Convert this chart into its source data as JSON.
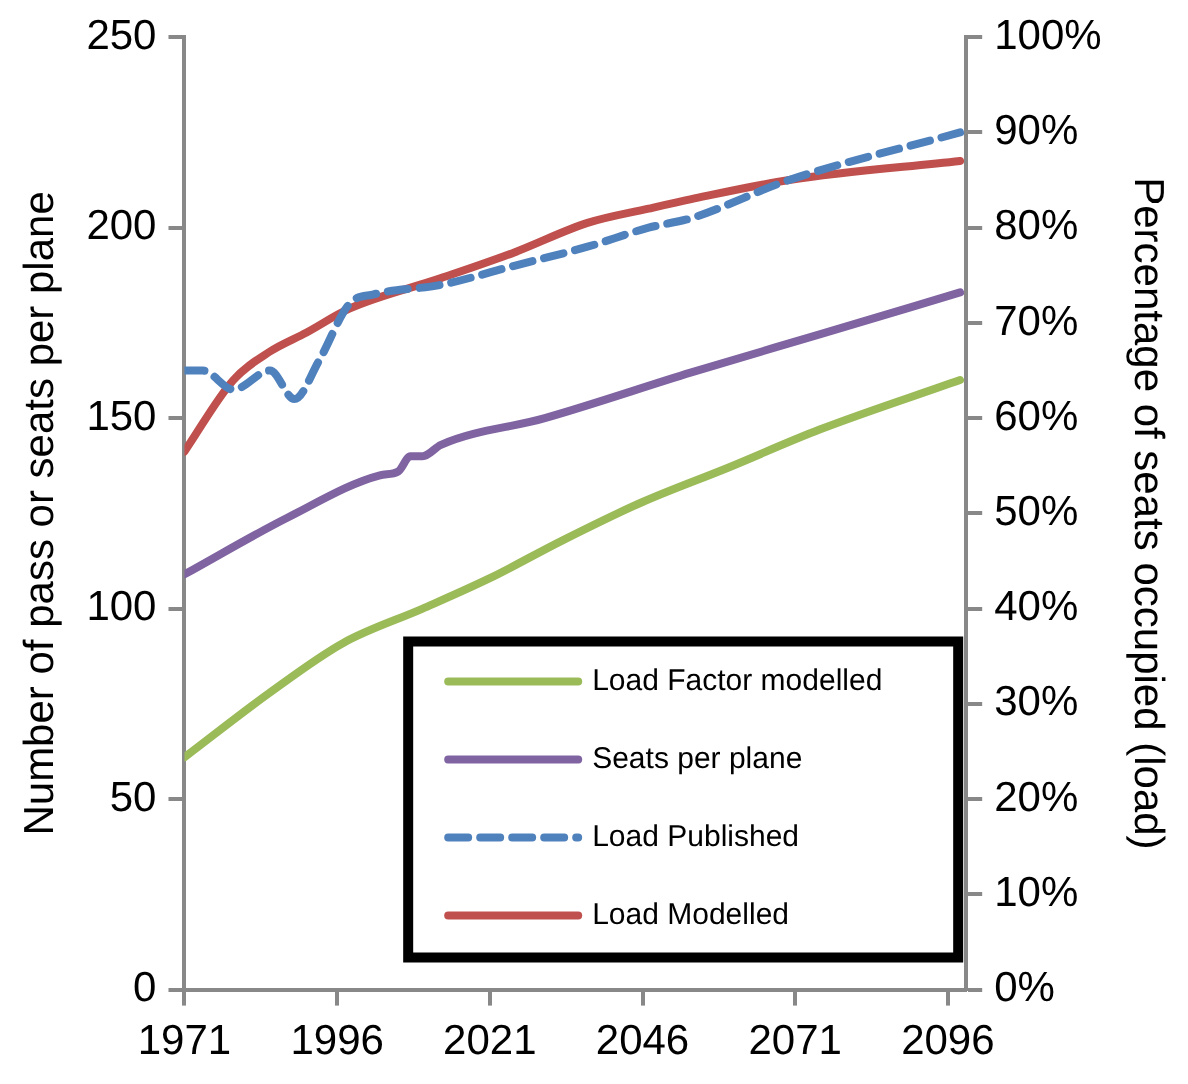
{
  "chart_data": {
    "type": "line",
    "ylabel": "Number of pass or seats per plane",
    "y2label": "Percentage of seats occupied (load)",
    "xlim": [
      1971,
      2099
    ],
    "xticks": [
      1971,
      1996,
      2021,
      2046,
      2071,
      2096
    ],
    "ylim": [
      0,
      250
    ],
    "yticks": [
      0,
      50,
      100,
      150,
      200,
      250
    ],
    "y2lim": [
      0,
      100
    ],
    "y2ticks": [
      {
        "value": 0,
        "label": "0%"
      },
      {
        "value": 10,
        "label": "10%"
      },
      {
        "value": 20,
        "label": "20%"
      },
      {
        "value": 30,
        "label": "30%"
      },
      {
        "value": 40,
        "label": "40%"
      },
      {
        "value": 50,
        "label": "50%"
      },
      {
        "value": 60,
        "label": "60%"
      },
      {
        "value": 70,
        "label": "70%"
      },
      {
        "value": 80,
        "label": "80%"
      },
      {
        "value": 90,
        "label": "90%"
      },
      {
        "value": 100,
        "label": "100%"
      }
    ],
    "grid": false,
    "legend": "bottom right",
    "marker": "none",
    "series": [
      {
        "name": "Load Factor modelled",
        "color": "#9bbb59",
        "line_style": "solid",
        "x": [
          1971,
          1985,
          1997,
          2010,
          2021,
          2033,
          2046,
          2060,
          2075,
          2098
        ],
        "values": [
          61,
          78,
          91,
          100,
          108,
          118,
          128,
          137,
          147,
          160
        ]
      },
      {
        "name": "Seats per plane",
        "color": "#8064a2",
        "line_style": "solid",
        "x": [
          1971,
          1988,
          2003,
          2006,
          2008,
          2010,
          2013,
          2030,
          2054,
          2075,
          2098
        ],
        "values": [
          109,
          124,
          135,
          136,
          140,
          140,
          143,
          150,
          162,
          172,
          183
        ]
      },
      {
        "name": "Load Published",
        "color": "#4f81bd",
        "line_style": "dashed",
        "axis": "y2",
        "x": [
          1971,
          1974,
          1979,
          1985,
          1989,
          1993,
          1998,
          2002,
          2013,
          2025,
          2037,
          2047,
          2054,
          2070,
          2098
        ],
        "values": [
          65,
          65,
          63,
          65,
          62,
          66,
          72,
          73,
          74,
          76,
          78,
          80,
          81,
          85,
          90
        ]
      },
      {
        "name": "Load Modelled",
        "color": "#c0504d",
        "line_style": "solid",
        "axis": "y2",
        "x": [
          1971,
          1979,
          1985,
          1991,
          1998,
          2013,
          2025,
          2037,
          2047,
          2054,
          2070,
          2098
        ],
        "values": [
          56.5,
          64,
          67,
          69,
          71.5,
          74.7,
          77.4,
          80.5,
          82,
          83,
          85,
          87
        ]
      }
    ]
  }
}
